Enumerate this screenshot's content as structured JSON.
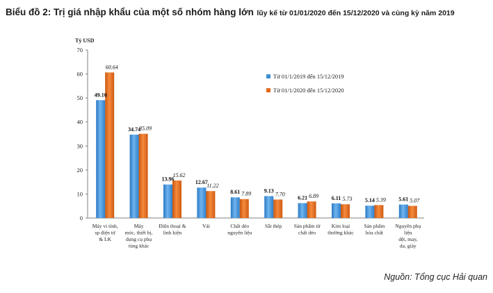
{
  "title": {
    "main": "Biểu đồ 2: Trị giá nhập khẩu của một số nhóm hàng lớn",
    "sub": "lũy kế từ 01/01/2020 đến 15/12/2020 và cùng kỳ năm 2019"
  },
  "source": "Nguồn: Tổng cục Hải quan",
  "colors": {
    "series2019": "#3d8fd6",
    "series2020": "#e26a1c",
    "axis": "#7f7f7f"
  },
  "chart_data": {
    "type": "bar",
    "ylabel": "Tỷ USD",
    "ylim": [
      0,
      70
    ],
    "yticks": [
      0,
      10,
      20,
      30,
      40,
      50,
      60,
      70
    ],
    "grid": false,
    "legend_position": "top-right",
    "categories": [
      [
        "Máy vi tính,",
        "sp điện tử",
        "& LK"
      ],
      [
        "Máy",
        "móc, thiết bị,",
        "dụng cụ phụ",
        "tùng khác"
      ],
      [
        "Điện thoại &",
        "linh kiện"
      ],
      [
        "Vải"
      ],
      [
        "Chất dẻo",
        "nguyên liệu"
      ],
      [
        "Sắt thép"
      ],
      [
        "Sản phẩm từ",
        "chất dẻo"
      ],
      [
        "Kim loại",
        "thường khác"
      ],
      [
        "Sản phẩm",
        "hóa chất"
      ],
      [
        "Nguyên phụ",
        "liệu",
        "dệt, may,",
        "da, giày"
      ]
    ],
    "series": [
      {
        "name": "Từ 01/1/2019 đến 15/12/2019",
        "values": [
          49.1,
          34.74,
          13.96,
          12.67,
          8.61,
          9.13,
          6.21,
          6.11,
          5.14,
          5.61
        ],
        "labels": [
          "49.10",
          "34.74",
          "13.96",
          "12.67",
          "8.61",
          "9.13",
          "6.21",
          "6.11",
          "5.14",
          "5.61"
        ]
      },
      {
        "name": "Từ 01/1/2020 đến 15/12/2020",
        "values": [
          60.64,
          35.09,
          15.62,
          11.22,
          7.89,
          7.7,
          6.89,
          5.73,
          5.39,
          5.07
        ],
        "labels": [
          "60.64",
          "35.09",
          "15.62",
          "11.22",
          "7.89",
          "7.70",
          "6.89",
          "5.73",
          "5.39",
          "5.07"
        ]
      }
    ]
  }
}
